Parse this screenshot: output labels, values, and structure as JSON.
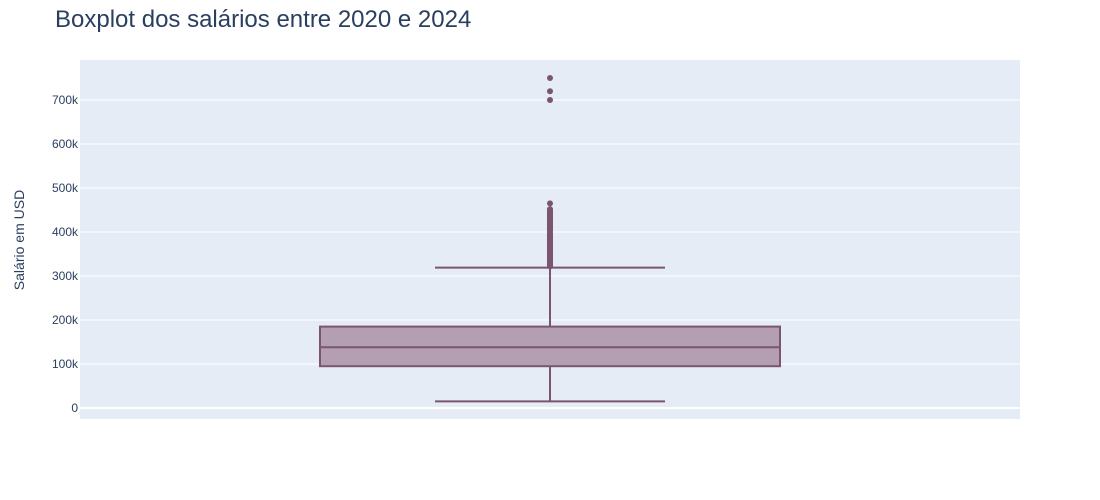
{
  "chart_data": {
    "type": "box",
    "title": "Boxplot dos salários entre 2020 e 2024",
    "xlabel": "",
    "ylabel": "Salário em USD",
    "ylim": [
      -25000,
      785000
    ],
    "yticks": [
      {
        "value": 0,
        "label": "0"
      },
      {
        "value": 100000,
        "label": "100k"
      },
      {
        "value": 200000,
        "label": "200k"
      },
      {
        "value": 300000,
        "label": "300k"
      },
      {
        "value": 400000,
        "label": "400k"
      },
      {
        "value": 500000,
        "label": "500k"
      },
      {
        "value": 600000,
        "label": "600k"
      },
      {
        "value": 700000,
        "label": "700k"
      }
    ],
    "grid": true,
    "box": {
      "lower_fence": 15000,
      "q1": 95000,
      "median": 138000,
      "q3": 185000,
      "upper_fence": 319000,
      "outliers": [
        322000,
        324000,
        326000,
        328000,
        330000,
        332000,
        334000,
        336000,
        338000,
        340000,
        342000,
        344000,
        346000,
        348000,
        350000,
        352000,
        354000,
        356000,
        358000,
        360000,
        362000,
        364000,
        366000,
        368000,
        370000,
        372000,
        374000,
        376000,
        378000,
        380000,
        382000,
        384000,
        386000,
        388000,
        390000,
        392000,
        394000,
        396000,
        398000,
        400000,
        402000,
        404000,
        406000,
        408000,
        410000,
        412000,
        414000,
        416000,
        418000,
        420000,
        422000,
        424000,
        426000,
        428000,
        430000,
        432000,
        434000,
        436000,
        438000,
        440000,
        442000,
        444000,
        446000,
        448000,
        450000,
        452000,
        465000,
        700000,
        720000,
        750000
      ]
    },
    "colors": {
      "box_line": "#7b5570",
      "box_fill": "#b49fb2",
      "plot_bg": "#e5ecf6",
      "grid": "#ffffff",
      "text": "#2a3f5f"
    }
  }
}
